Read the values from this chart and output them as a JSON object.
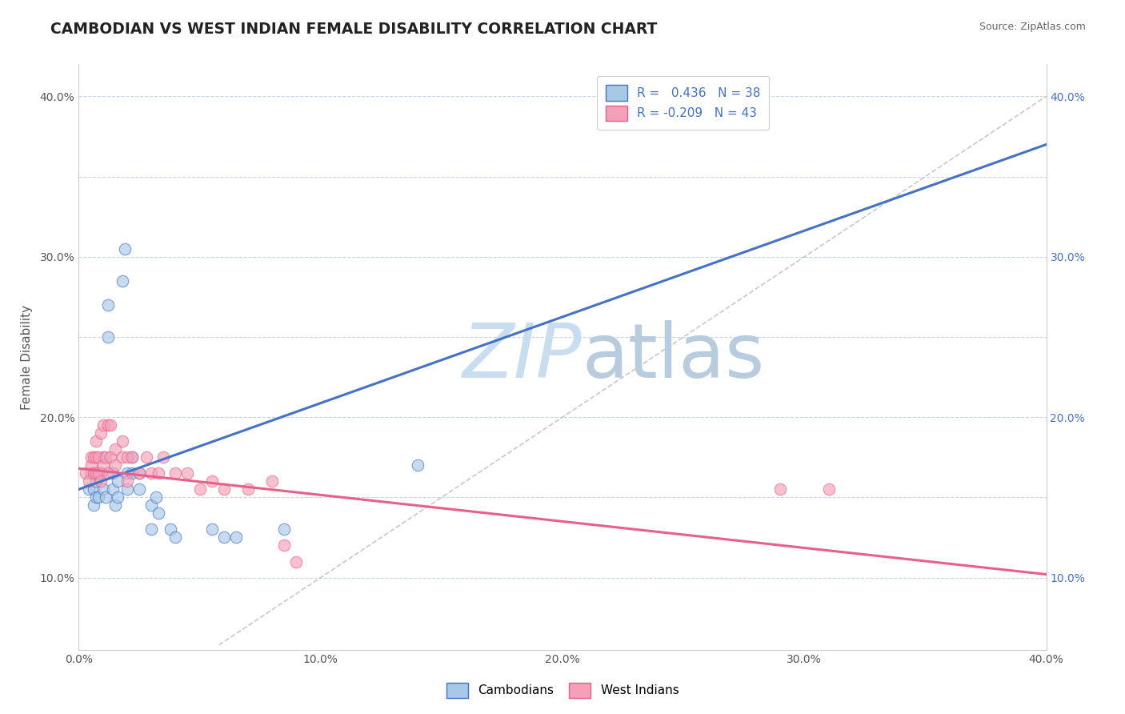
{
  "title": "CAMBODIAN VS WEST INDIAN FEMALE DISABILITY CORRELATION CHART",
  "source": "Source: ZipAtlas.com",
  "ylabel": "Female Disability",
  "xlim": [
    0.0,
    0.4
  ],
  "ylim": [
    0.055,
    0.42
  ],
  "ytick_vals": [
    0.1,
    0.15,
    0.2,
    0.25,
    0.3,
    0.35,
    0.4
  ],
  "xtick_vals": [
    0.0,
    0.05,
    0.1,
    0.15,
    0.2,
    0.25,
    0.3,
    0.35,
    0.4
  ],
  "r_cambodian": 0.436,
  "n_cambodian": 38,
  "r_west_indian": -0.209,
  "n_west_indian": 43,
  "cambodian_color": "#a8c8e8",
  "west_indian_color": "#f4a0b8",
  "trend_cambodian_color": "#4472c4",
  "trend_west_indian_color": "#e8608a",
  "watermark_zip_color": "#cce0f0",
  "watermark_atlas_color": "#c8d8e8",
  "background_color": "#ffffff",
  "grid_color": "#c8d4e8",
  "scatter_alpha": 0.65,
  "scatter_size": 110,
  "cambodian_scatter": [
    [
      0.004,
      0.155
    ],
    [
      0.005,
      0.165
    ],
    [
      0.006,
      0.155
    ],
    [
      0.006,
      0.145
    ],
    [
      0.007,
      0.16
    ],
    [
      0.007,
      0.15
    ],
    [
      0.008,
      0.165
    ],
    [
      0.008,
      0.15
    ],
    [
      0.009,
      0.165
    ],
    [
      0.01,
      0.155
    ],
    [
      0.01,
      0.175
    ],
    [
      0.011,
      0.15
    ],
    [
      0.012,
      0.25
    ],
    [
      0.012,
      0.27
    ],
    [
      0.014,
      0.155
    ],
    [
      0.014,
      0.165
    ],
    [
      0.015,
      0.145
    ],
    [
      0.016,
      0.15
    ],
    [
      0.016,
      0.16
    ],
    [
      0.018,
      0.285
    ],
    [
      0.019,
      0.305
    ],
    [
      0.02,
      0.155
    ],
    [
      0.02,
      0.165
    ],
    [
      0.022,
      0.165
    ],
    [
      0.022,
      0.175
    ],
    [
      0.025,
      0.155
    ],
    [
      0.025,
      0.165
    ],
    [
      0.03,
      0.13
    ],
    [
      0.03,
      0.145
    ],
    [
      0.032,
      0.15
    ],
    [
      0.033,
      0.14
    ],
    [
      0.038,
      0.13
    ],
    [
      0.04,
      0.125
    ],
    [
      0.055,
      0.13
    ],
    [
      0.06,
      0.125
    ],
    [
      0.065,
      0.125
    ],
    [
      0.085,
      0.13
    ],
    [
      0.14,
      0.17
    ]
  ],
  "west_indian_scatter": [
    [
      0.003,
      0.165
    ],
    [
      0.004,
      0.16
    ],
    [
      0.005,
      0.17
    ],
    [
      0.005,
      0.175
    ],
    [
      0.006,
      0.165
    ],
    [
      0.006,
      0.175
    ],
    [
      0.007,
      0.165
    ],
    [
      0.007,
      0.175
    ],
    [
      0.007,
      0.185
    ],
    [
      0.008,
      0.165
    ],
    [
      0.008,
      0.175
    ],
    [
      0.009,
      0.16
    ],
    [
      0.009,
      0.19
    ],
    [
      0.01,
      0.17
    ],
    [
      0.01,
      0.195
    ],
    [
      0.011,
      0.175
    ],
    [
      0.012,
      0.165
    ],
    [
      0.012,
      0.195
    ],
    [
      0.013,
      0.175
    ],
    [
      0.013,
      0.195
    ],
    [
      0.015,
      0.17
    ],
    [
      0.015,
      0.18
    ],
    [
      0.018,
      0.175
    ],
    [
      0.018,
      0.185
    ],
    [
      0.02,
      0.16
    ],
    [
      0.02,
      0.175
    ],
    [
      0.022,
      0.175
    ],
    [
      0.025,
      0.165
    ],
    [
      0.028,
      0.175
    ],
    [
      0.03,
      0.165
    ],
    [
      0.033,
      0.165
    ],
    [
      0.035,
      0.175
    ],
    [
      0.04,
      0.165
    ],
    [
      0.045,
      0.165
    ],
    [
      0.05,
      0.155
    ],
    [
      0.055,
      0.16
    ],
    [
      0.06,
      0.155
    ],
    [
      0.07,
      0.155
    ],
    [
      0.08,
      0.16
    ],
    [
      0.085,
      0.12
    ],
    [
      0.09,
      0.11
    ],
    [
      0.29,
      0.155
    ],
    [
      0.31,
      0.155
    ]
  ],
  "cambodian_trend": [
    0.0,
    0.4
  ],
  "cambodian_trend_y": [
    0.155,
    0.37
  ],
  "west_indian_trend": [
    0.0,
    0.4
  ],
  "west_indian_trend_y": [
    0.168,
    0.102
  ],
  "diag_line_x": [
    0.058,
    0.4
  ],
  "diag_line_y": [
    0.058,
    0.4
  ]
}
